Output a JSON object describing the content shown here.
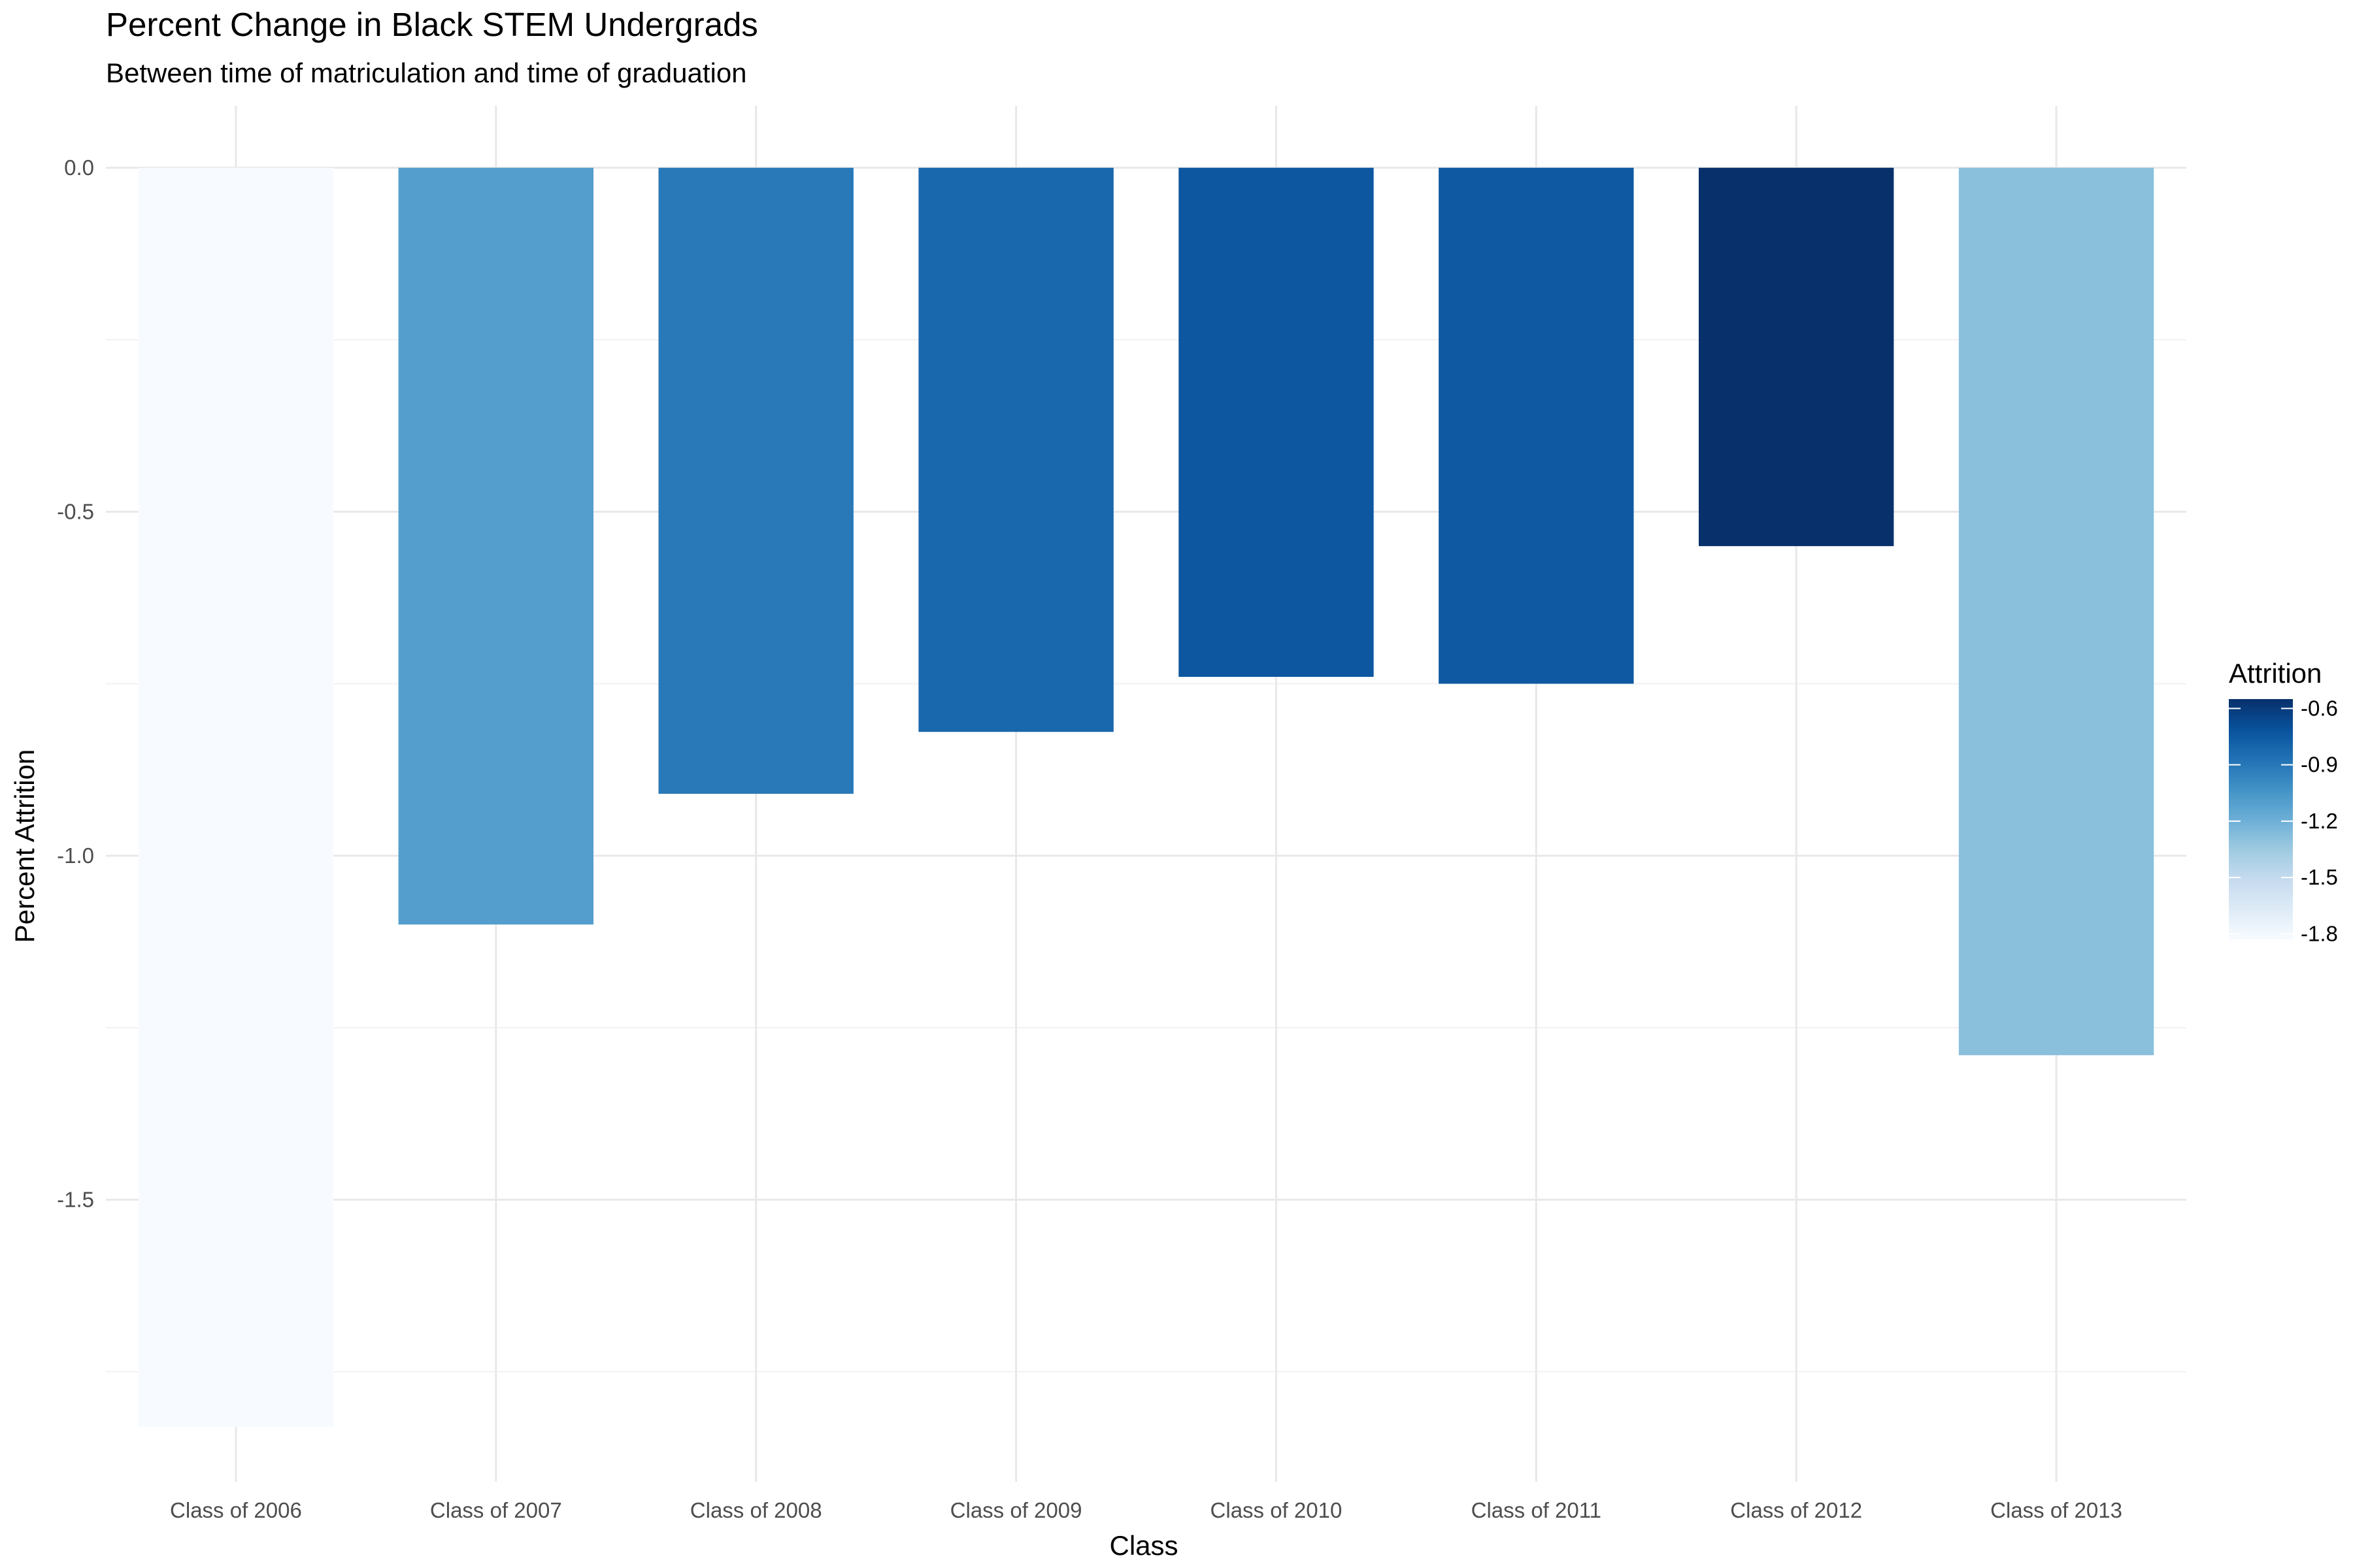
{
  "chart_data": {
    "type": "bar",
    "title": "Percent Change in Black STEM Undergrads",
    "subtitle": "Between time of matriculation and time of graduation",
    "xlabel": "Class",
    "ylabel": "Percent Attrition",
    "categories": [
      "Class of 2006",
      "Class of 2007",
      "Class of 2008",
      "Class of 2009",
      "Class of 2010",
      "Class of 2011",
      "Class of 2012",
      "Class of 2013"
    ],
    "values": [
      -1.83,
      -1.1,
      -0.91,
      -0.82,
      -0.74,
      -0.75,
      -0.55,
      -1.29
    ],
    "ylim": [
      -1.91,
      0.09
    ],
    "y_ticks": [
      0.0,
      -0.5,
      -1.0,
      -1.5
    ],
    "y_tick_labels": [
      "0.0",
      "-0.5",
      "-1.0",
      "-1.5"
    ],
    "grid": true,
    "legend": {
      "title": "Attrition",
      "position": "right",
      "type": "continuous color scale",
      "breaks": [
        -0.6,
        -0.9,
        -1.2,
        -1.5,
        -1.8
      ],
      "labels": [
        "-0.6",
        "-0.9",
        "-1.2",
        "-1.5",
        "-1.8"
      ],
      "range": [
        -1.83,
        -0.55
      ]
    },
    "color_scale": [
      "#f7fbff",
      "#deebf7",
      "#c6dbef",
      "#9ecae1",
      "#6baed6",
      "#4292c6",
      "#2171b5",
      "#08519c",
      "#08306b"
    ],
    "colors": {
      "grid_major": "#e8e8e8",
      "grid_minor": "#f2f2f2",
      "tick_text": "#4d4d4d"
    }
  }
}
